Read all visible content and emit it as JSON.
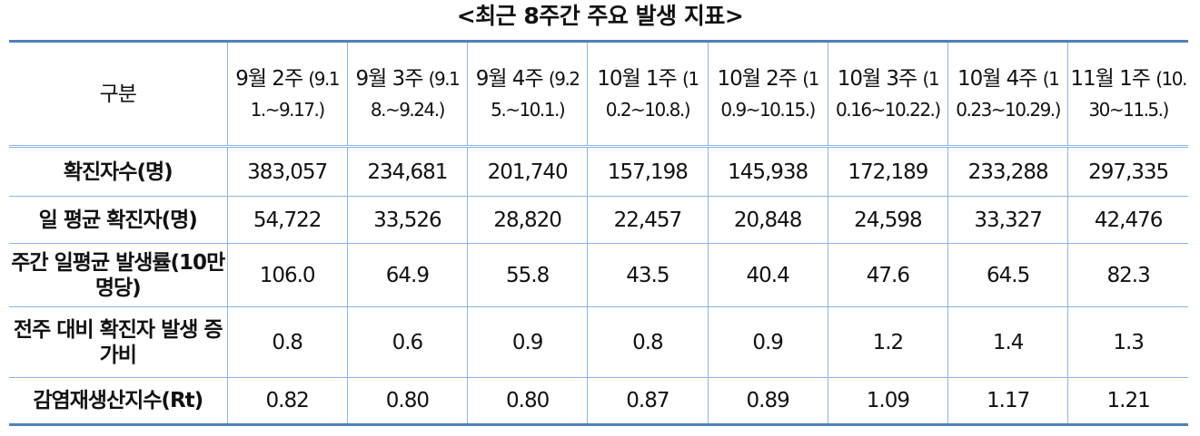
{
  "title": "<최근 8주간 주요 발생 지표>",
  "table": {
    "corner": "구분",
    "columns": [
      {
        "week": "9월 2주",
        "period": "(9.11.~9.17.)"
      },
      {
        "week": "9월 3주",
        "period": "(9.18.~9.24.)"
      },
      {
        "week": "9월 4주",
        "period": "(9.25.~10.1.)"
      },
      {
        "week": "10월 1주",
        "period": "(10.2~10.8.)"
      },
      {
        "week": "10월 2주",
        "period": "(10.9~10.15.)"
      },
      {
        "week": "10월 3주",
        "period": "(10.16~10.22.)"
      },
      {
        "week": "10월 4주",
        "period": "(10.23~10.29.)"
      },
      {
        "week": "11월 1주",
        "period": "(10.30~11.5.)"
      }
    ],
    "rows": [
      {
        "label": "확진자수(명)",
        "cells": [
          "383,057",
          "234,681",
          "201,740",
          "157,198",
          "145,938",
          "172,189",
          "233,288",
          "297,335"
        ]
      },
      {
        "label": "일 평균 확진자(명)",
        "cells": [
          "54,722",
          "33,526",
          "28,820",
          "22,457",
          "20,848",
          "24,598",
          "33,327",
          "42,476"
        ]
      },
      {
        "label": "주간 일평균 발생률(10만 명당)",
        "cells": [
          "106.0",
          "64.9",
          "55.8",
          "43.5",
          "40.4",
          "47.6",
          "64.5",
          "82.3"
        ]
      },
      {
        "label": "전주 대비 확진자 발생 증가비",
        "cells": [
          "0.8",
          "0.6",
          "0.9",
          "0.8",
          "0.9",
          "1.2",
          "1.4",
          "1.3"
        ]
      },
      {
        "label": "감염재생산지수(Rt)",
        "cells": [
          "0.82",
          "0.80",
          "0.80",
          "0.87",
          "0.89",
          "1.09",
          "1.17",
          "1.21"
        ]
      }
    ]
  }
}
